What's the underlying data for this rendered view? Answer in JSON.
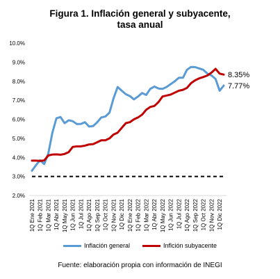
{
  "figure": {
    "title_line1": "Figura 1. Inflación general y subyacente,",
    "title_line2": "tasa anual",
    "source": "Fuente: elaboración propia con información de INEGI"
  },
  "colors": {
    "general": "#5b9bd5",
    "subyacente": "#c00000",
    "reference": "#000000",
    "axis": "#d9d9d9"
  },
  "chart_data": {
    "type": "line",
    "title": "Figura 1. Inflación general y subyacente, tasa anual",
    "xlabel": "",
    "ylabel": "",
    "ylim": [
      0.02,
      0.1
    ],
    "y_ticks": [
      0.02,
      0.03,
      0.04,
      0.05,
      0.06,
      0.07,
      0.08,
      0.09,
      0.1
    ],
    "y_tick_labels": [
      "2.0%",
      "3.0%",
      "4.0%",
      "5.0%",
      "6.0%",
      "7.0%",
      "8.0%",
      "9.0%",
      "10.0%"
    ],
    "x_tick_labels": [
      "1Q Ene 2021",
      "1Q Feb 2021",
      "1Q Mar 2021",
      "1Q Abr 2021",
      "1Q May 2021",
      "1Q Jun 2021",
      "1Q Jul 2021",
      "1Q Ago 2021",
      "1Q Sep 2021",
      "1Q Oct 2021",
      "1Q Nov 2021",
      "1Q Dic 2021",
      "1Q Ene 2022",
      "1Q Feb 2022",
      "1Q Mar 2022",
      "1Q Abr 2022",
      "1Q May 2022",
      "1Q Jun 2022",
      "1Q Jul 2022",
      "1Q Ago 2022",
      "1Q Sep 2022",
      "1Q Oct 2022",
      "1Q Nov 2022",
      "1Q Dic 2022"
    ],
    "n_points": 48,
    "reference_line": 0.03,
    "grid": false,
    "legend_placement": "bottom",
    "series": [
      {
        "name": "Inflación general",
        "color_key": "general",
        "end_label": "7.77%",
        "values": [
          0.033,
          0.036,
          0.0385,
          0.0365,
          0.042,
          0.053,
          0.0605,
          0.0612,
          0.058,
          0.0595,
          0.059,
          0.0575,
          0.0576,
          0.0585,
          0.0562,
          0.0565,
          0.0585,
          0.061,
          0.0615,
          0.0635,
          0.071,
          0.077,
          0.075,
          0.0732,
          0.0722,
          0.0705,
          0.072,
          0.0738,
          0.0728,
          0.076,
          0.0772,
          0.0762,
          0.076,
          0.077,
          0.0785,
          0.08,
          0.0818,
          0.0818,
          0.086,
          0.0875,
          0.0874,
          0.0867,
          0.086,
          0.084,
          0.083,
          0.0812,
          0.075,
          0.0777
        ]
      },
      {
        "name": "Inflción subyacente",
        "color_key": "subyacente",
        "end_label": "8.35%",
        "values": [
          0.0383,
          0.0383,
          0.0382,
          0.0384,
          0.041,
          0.0415,
          0.0416,
          0.0414,
          0.0418,
          0.0428,
          0.0455,
          0.0458,
          0.0458,
          0.0462,
          0.0468,
          0.047,
          0.048,
          0.049,
          0.049,
          0.05,
          0.052,
          0.053,
          0.0555,
          0.058,
          0.0585,
          0.06,
          0.061,
          0.0625,
          0.065,
          0.0665,
          0.067,
          0.069,
          0.072,
          0.0725,
          0.073,
          0.074,
          0.075,
          0.0755,
          0.0765,
          0.079,
          0.0805,
          0.0815,
          0.0822,
          0.083,
          0.0845,
          0.0865,
          0.084,
          0.0835
        ]
      }
    ]
  }
}
